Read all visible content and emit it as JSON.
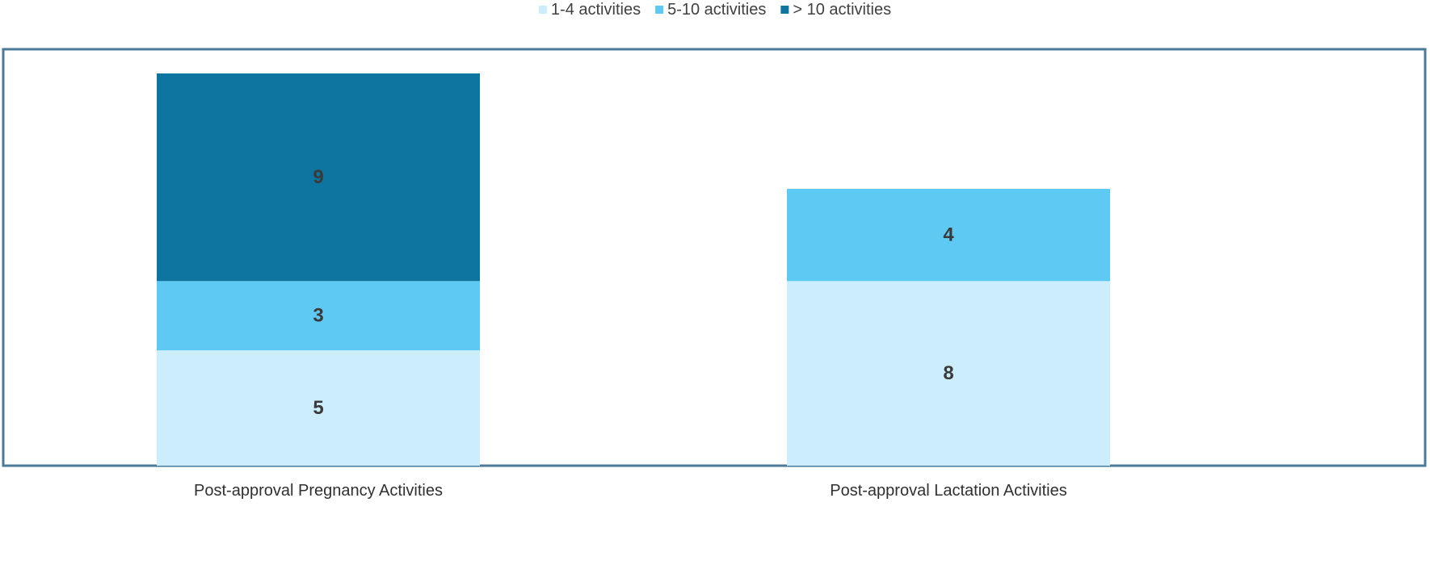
{
  "chart_data": {
    "type": "bar",
    "stacked": true,
    "title": "",
    "xlabel": "",
    "ylabel": "",
    "categories": [
      "Post-approval Pregnancy Activities",
      "Post-approval Lactation Activities"
    ],
    "series": [
      {
        "name": "1-4 activities",
        "values": [
          5,
          8
        ],
        "labels": [
          "5",
          "8"
        ],
        "color": "#CCEDFB"
      },
      {
        "name": "5-10 activities",
        "values": [
          3,
          4
        ],
        "labels": [
          "3",
          "4"
        ],
        "color": "#5EC9F3"
      },
      {
        "name": "> 10 activities",
        "values": [
          9,
          0
        ],
        "labels": [
          "9",
          ""
        ],
        "color": "#0D759F"
      }
    ],
    "ylim": [
      0,
      17
    ],
    "grid": false,
    "legend_position": "top-center",
    "frame_color": "#4A7A98"
  }
}
